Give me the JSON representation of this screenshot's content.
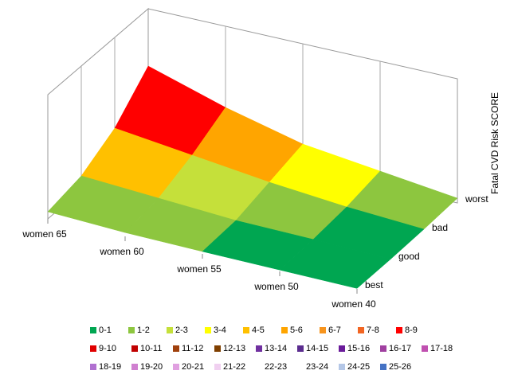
{
  "chart_data": {
    "type": "surface",
    "z_axis_label": "Fatal CVD Risk SCORE",
    "categories": [
      "women 65",
      "women 60",
      "women 55",
      "women 50",
      "women 40"
    ],
    "depth_categories": [
      "best",
      "good",
      "bad",
      "worst"
    ],
    "zlim": [
      0,
      26
    ],
    "series": [
      {
        "name": "best",
        "values": [
          1.5,
          0.8,
          0.5,
          0.3,
          0.1
        ]
      },
      {
        "name": "good",
        "values": [
          3,
          2,
          1,
          0.7,
          0.2
        ]
      },
      {
        "name": "bad",
        "values": [
          7,
          5,
          3,
          1.5,
          0.5
        ]
      },
      {
        "name": "worst",
        "values": [
          14,
          9,
          5,
          3,
          1
        ]
      }
    ],
    "bands": [
      {
        "label": "0-1",
        "color": "#00a651"
      },
      {
        "label": "1-2",
        "color": "#8dc63f"
      },
      {
        "label": "2-3",
        "color": "#c5e03a"
      },
      {
        "label": "3-4",
        "color": "#ffff00"
      },
      {
        "label": "4-5",
        "color": "#ffc000"
      },
      {
        "label": "5-6",
        "color": "#ffa500"
      },
      {
        "label": "6-7",
        "color": "#f7941d"
      },
      {
        "label": "7-8",
        "color": "#f26522"
      },
      {
        "label": "8-9",
        "color": "#ff0000"
      },
      {
        "label": "9-10",
        "color": "#e00000"
      },
      {
        "label": "10-11",
        "color": "#c00000"
      },
      {
        "label": "11-12",
        "color": "#a0410d"
      },
      {
        "label": "12-13",
        "color": "#7f3f00"
      },
      {
        "label": "13-14",
        "color": "#7030a0"
      },
      {
        "label": "14-15",
        "color": "#5b2c8f"
      },
      {
        "label": "15-16",
        "color": "#6a1b9a"
      },
      {
        "label": "16-17",
        "color": "#a040a0"
      },
      {
        "label": "17-18",
        "color": "#c050b0"
      },
      {
        "label": "18-19",
        "color": "#b070d0"
      },
      {
        "label": "19-20",
        "color": "#d080d0"
      },
      {
        "label": "20-21",
        "color": "#e0a0e0"
      },
      {
        "label": "21-22",
        "color": "#f0d0f0"
      },
      {
        "label": "22-23",
        "color": "#ffffff"
      },
      {
        "label": "23-24",
        "color": "#ffffff"
      },
      {
        "label": "24-25",
        "color": "#b4c7e7"
      },
      {
        "label": "25-26",
        "color": "#4472c4"
      }
    ]
  }
}
